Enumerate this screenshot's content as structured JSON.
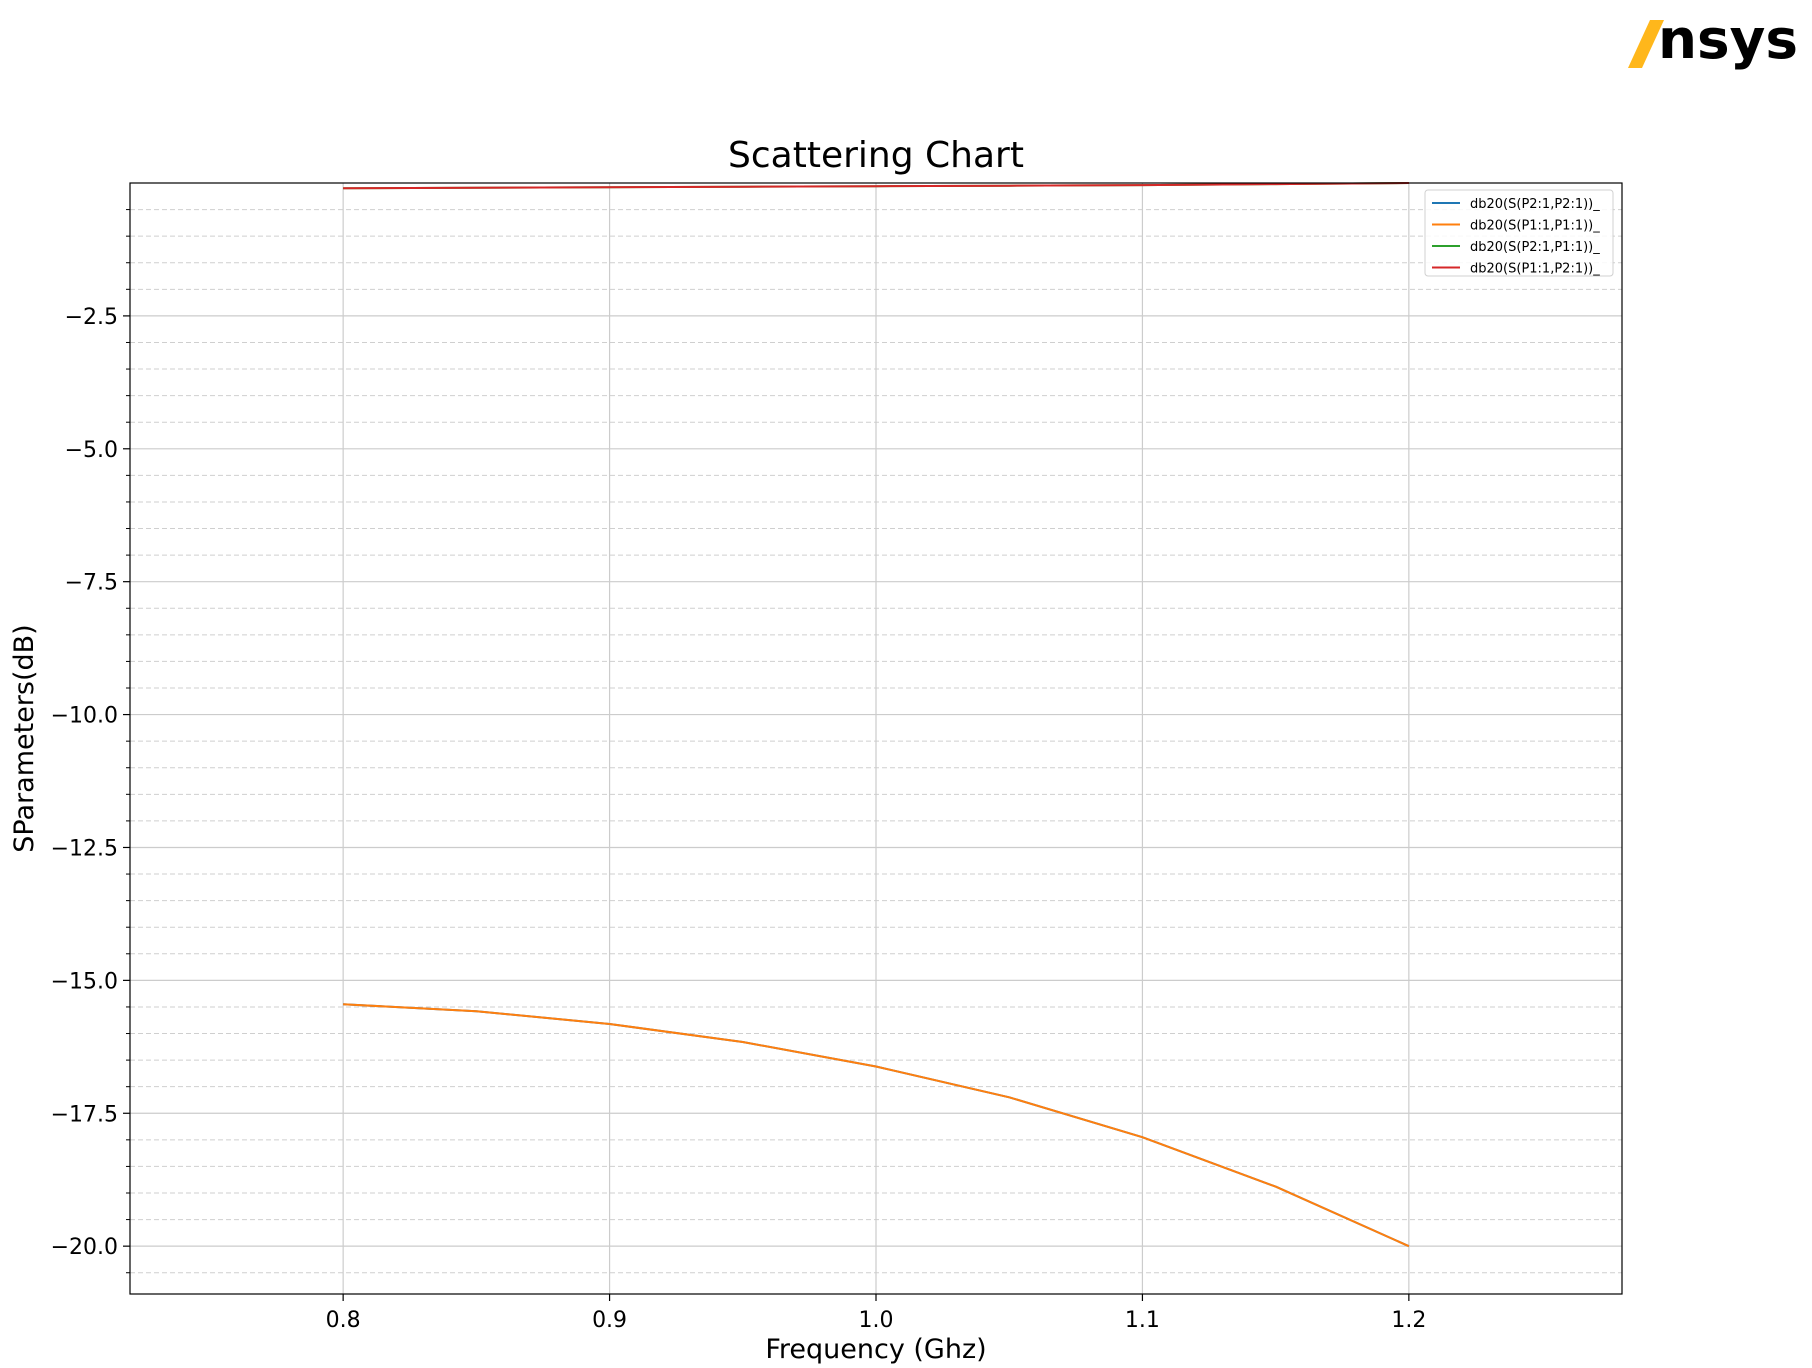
{
  "logo": {
    "text": "nsys",
    "accent_color": "#FFB71B"
  },
  "chart_data": {
    "type": "line",
    "title": "Scattering Chart",
    "xlabel": "Frequency (Ghz)",
    "ylabel": "SParameters(dB)",
    "xlim": [
      0.72,
      1.28
    ],
    "ylim": [
      -20.9,
      0.0
    ],
    "xticks": [
      0.8,
      0.9,
      1.0,
      1.1,
      1.2
    ],
    "xtick_labels": [
      "0.8",
      "0.9",
      "1.0",
      "1.1",
      "1.2"
    ],
    "yticks": [
      -2.5,
      -5.0,
      -7.5,
      -10.0,
      -12.5,
      -15.0,
      -17.5,
      -20.0
    ],
    "ytick_labels": [
      "−2.5",
      "−5.0",
      "−7.5",
      "−10.0",
      "−12.5",
      "−15.0",
      "−17.5",
      "−20.0"
    ],
    "grid": true,
    "legend_position": "top-right",
    "x": [
      0.8,
      0.85,
      0.9,
      0.95,
      1.0,
      1.05,
      1.1,
      1.15,
      1.2
    ],
    "series": [
      {
        "name": "db20(S(P2:1,P2:1))_",
        "color": "#1f77b4",
        "values": [
          -15.45,
          -15.58,
          -15.82,
          -16.16,
          -16.62,
          -17.2,
          -17.95,
          -18.88,
          -20.0
        ]
      },
      {
        "name": "db20(S(P1:1,P1:1))_",
        "color": "#ff7f0e",
        "values": [
          -15.45,
          -15.58,
          -15.82,
          -16.16,
          -16.62,
          -17.2,
          -17.95,
          -18.88,
          -20.0
        ]
      },
      {
        "name": "db20(S(P2:1,P1:1))_",
        "color": "#2ca02c",
        "values": [
          -0.1,
          -0.09,
          -0.08,
          -0.07,
          -0.06,
          -0.05,
          -0.04,
          -0.02,
          0.0
        ]
      },
      {
        "name": "db20(S(P1:1,P2:1))_",
        "color": "#d62728",
        "values": [
          -0.1,
          -0.09,
          -0.08,
          -0.07,
          -0.06,
          -0.05,
          -0.04,
          -0.02,
          0.0
        ]
      }
    ]
  }
}
